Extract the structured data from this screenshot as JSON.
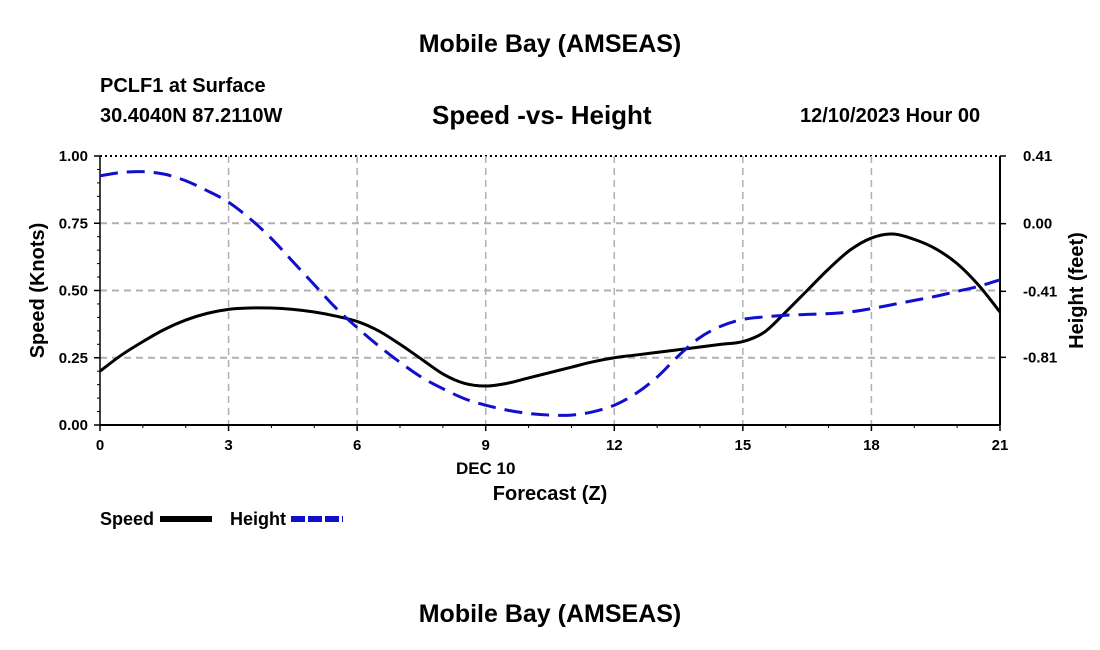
{
  "header": {
    "title": "Mobile Bay (AMSEAS)",
    "station": "PCLF1 at Surface",
    "coords": "30.4040N  87.2110W",
    "subtitle": "Speed -vs- Height",
    "datetime": "12/10/2023 Hour 00"
  },
  "footer": {
    "title": "Mobile Bay (AMSEAS)"
  },
  "colors": {
    "speed": "#000000",
    "height": "#1010cc",
    "grid": "#b0b0b0"
  },
  "chart_data": {
    "type": "line",
    "title": "Speed -vs- Height",
    "xlabel": "Forecast (Z)",
    "xsublabel": "DEC 10",
    "ylabel": "Speed (Knots)",
    "y2label": "Height (feet)",
    "xlim": [
      0,
      21
    ],
    "ylim": [
      0,
      1
    ],
    "y2lim": [
      -1.22,
      0.41
    ],
    "xticks": [
      0,
      3,
      6,
      9,
      12,
      15,
      18,
      21
    ],
    "xtick_labels": [
      "0",
      "3",
      "6",
      "9",
      "12",
      "15",
      "18",
      "21"
    ],
    "yticks": [
      0,
      0.25,
      0.5,
      0.75,
      1.0
    ],
    "ytick_labels": [
      "0.00",
      "0.25",
      "0.50",
      "0.75",
      "1.00"
    ],
    "y2ticks": [
      -0.81,
      -0.41,
      0.0,
      0.41
    ],
    "y2tick_labels": [
      "-0.81",
      "-0.41",
      "0.00",
      "0.41"
    ],
    "grid": true,
    "legend_position": "bottom-left",
    "series": [
      {
        "name": "Speed",
        "axis": "left",
        "style": "solid",
        "x": [
          0,
          0.5,
          1,
          1.5,
          2,
          2.5,
          3,
          3.5,
          4,
          4.5,
          5,
          5.5,
          6,
          6.5,
          7,
          7.5,
          8,
          8.5,
          9,
          9.5,
          10,
          10.5,
          11,
          11.5,
          12,
          12.5,
          13,
          13.5,
          14,
          14.5,
          15,
          15.5,
          16,
          16.5,
          17,
          17.5,
          18,
          18.5,
          19,
          19.5,
          20,
          20.5,
          21
        ],
        "values": [
          0.2,
          0.26,
          0.31,
          0.355,
          0.39,
          0.415,
          0.43,
          0.435,
          0.435,
          0.43,
          0.42,
          0.405,
          0.385,
          0.35,
          0.3,
          0.245,
          0.19,
          0.155,
          0.145,
          0.155,
          0.175,
          0.195,
          0.215,
          0.235,
          0.25,
          0.26,
          0.27,
          0.28,
          0.29,
          0.3,
          0.31,
          0.345,
          0.42,
          0.5,
          0.58,
          0.65,
          0.695,
          0.71,
          0.69,
          0.655,
          0.6,
          0.52,
          0.42
        ]
      },
      {
        "name": "Height",
        "axis": "right",
        "style": "dashed",
        "x": [
          0,
          0.5,
          1,
          1.5,
          2,
          2.5,
          3,
          3.5,
          4,
          4.5,
          5,
          5.5,
          6,
          6.5,
          7,
          7.5,
          8,
          8.5,
          9,
          9.5,
          10,
          10.5,
          11,
          11.5,
          12,
          12.5,
          13,
          13.5,
          14,
          14.5,
          15,
          15.5,
          16,
          16.5,
          17,
          17.5,
          18,
          18.5,
          19,
          19.5,
          20,
          20.5,
          21
        ],
        "values": [
          0.29,
          0.31,
          0.315,
          0.3,
          0.26,
          0.2,
          0.13,
          0.03,
          -0.09,
          -0.23,
          -0.37,
          -0.51,
          -0.63,
          -0.74,
          -0.84,
          -0.93,
          -1.0,
          -1.06,
          -1.1,
          -1.13,
          -1.15,
          -1.16,
          -1.16,
          -1.14,
          -1.1,
          -1.03,
          -0.93,
          -0.8,
          -0.69,
          -0.62,
          -0.58,
          -0.565,
          -0.555,
          -0.55,
          -0.545,
          -0.535,
          -0.515,
          -0.49,
          -0.465,
          -0.44,
          -0.41,
          -0.38,
          -0.34
        ]
      }
    ]
  }
}
